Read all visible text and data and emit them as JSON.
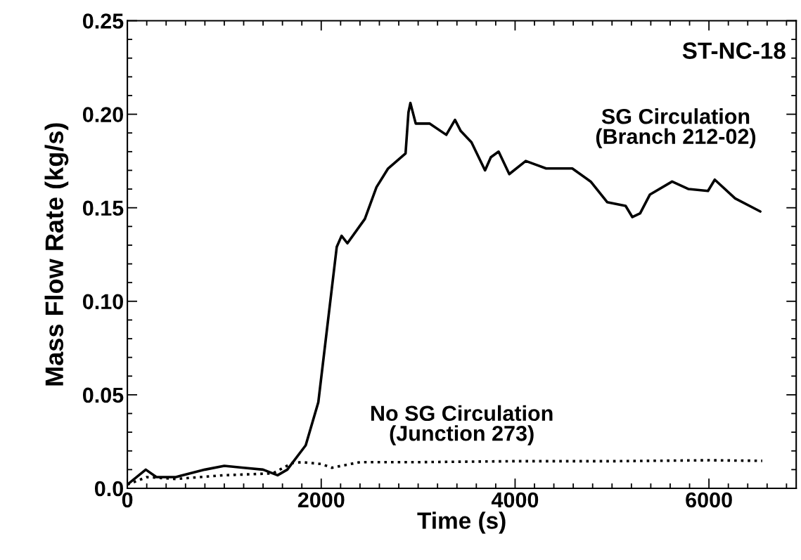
{
  "chart_data": {
    "type": "line",
    "xlabel": "Time (s)",
    "ylabel": "Mass Flow Rate (kg/s)",
    "xlim": [
      0,
      6900
    ],
    "ylim": [
      0,
      0.25
    ],
    "xticks": [
      0,
      2000,
      4000,
      6000
    ],
    "yticks": [
      {
        "value": 0,
        "label": "0.0"
      },
      0.05,
      {
        "value": 0.1,
        "label": "0.10"
      },
      0.15,
      {
        "value": 0.2,
        "label": "0.20"
      },
      0.25
    ],
    "grid": false,
    "legend": false,
    "marker": "none",
    "annotations": [
      "ST-NC-18",
      "SG Circulation\n(Branch 212-02)",
      "No SG Circulation\n(Junction 273)"
    ],
    "series": [
      {
        "color": "#000000",
        "line_style": "solid",
        "x": [
          0,
          190,
          300,
          500,
          800,
          1000,
          1200,
          1400,
          1550,
          1650,
          1840,
          1970,
          2160,
          2210,
          2270,
          2450,
          2570,
          2690,
          2870,
          2900,
          2920,
          2975,
          3120,
          3290,
          3380,
          3440,
          3550,
          3690,
          3750,
          3830,
          3940,
          4110,
          4320,
          4590,
          4780,
          4950,
          5140,
          5210,
          5290,
          5390,
          5620,
          5790,
          5990,
          6060,
          6270,
          6530
        ],
        "values": [
          0.002,
          0.01,
          0.006,
          0.006,
          0.01,
          0.012,
          0.011,
          0.01,
          0.007,
          0.01,
          0.023,
          0.046,
          0.129,
          0.135,
          0.131,
          0.144,
          0.161,
          0.171,
          0.179,
          0.201,
          0.206,
          0.195,
          0.195,
          0.189,
          0.197,
          0.191,
          0.185,
          0.17,
          0.177,
          0.18,
          0.168,
          0.175,
          0.171,
          0.171,
          0.164,
          0.153,
          0.151,
          0.145,
          0.147,
          0.157,
          0.164,
          0.16,
          0.159,
          0.165,
          0.155,
          0.148
        ]
      },
      {
        "color": "#000000",
        "line_style": "dotted",
        "x": [
          0,
          200,
          500,
          1000,
          1500,
          1700,
          1800,
          2000,
          2110,
          2400,
          3000,
          4000,
          5000,
          6000,
          6550
        ],
        "values": [
          0.002,
          0.006,
          0.005,
          0.007,
          0.008,
          0.0135,
          0.014,
          0.013,
          0.011,
          0.014,
          0.014,
          0.0145,
          0.0145,
          0.015,
          0.0147
        ]
      }
    ]
  }
}
